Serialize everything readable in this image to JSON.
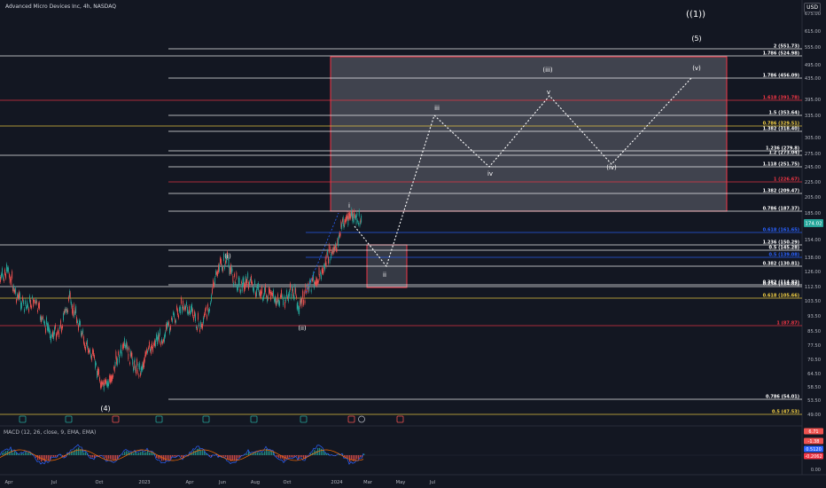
{
  "header": {
    "symbol_title": "Advanced Micro Devices Inc, 4h, NASDAQ",
    "currency_button": "USD"
  },
  "price_axis": {
    "ticks": [
      "675.00",
      "615.00",
      "555.00",
      "495.00",
      "435.00",
      "395.00",
      "335.00",
      "305.00",
      "275.00",
      "245.00",
      "225.00",
      "205.00",
      "185.00",
      "154.00",
      "138.00",
      "126.00",
      "112.50",
      "103.50",
      "93.50",
      "85.50",
      "77.50",
      "70.50",
      "64.50",
      "58.50",
      "53.50",
      "49.00"
    ],
    "current_price": "174.02"
  },
  "time_axis": [
    "Apr",
    "Jul",
    "Oct",
    "2023",
    "Apr",
    "Jun",
    "Aug",
    "Oct",
    "2024",
    "Mar",
    "May",
    "Jul"
  ],
  "fib_levels": [
    {
      "label": "2 (551.73)",
      "color": "#ffffff"
    },
    {
      "label": "1.786 (524.98)",
      "color": "#ffffff"
    },
    {
      "label": "1.786 (456.09)",
      "color": "#ffffff"
    },
    {
      "label": "1.618 (391.78)",
      "color": "#f23645"
    },
    {
      "label": "1.5 (353.64)",
      "color": "#ffffff"
    },
    {
      "label": "0.786 (329.51)",
      "color": "#f5d143"
    },
    {
      "label": "1.382 (318.40)",
      "color": "#ffffff"
    },
    {
      "label": "1.236 (279.8)",
      "color": "#ffffff"
    },
    {
      "label": "1.2 (273.04)",
      "color": "#ffffff"
    },
    {
      "label": "1.118 (251.75)",
      "color": "#ffffff"
    },
    {
      "label": "1 (226.67)",
      "color": "#f23645"
    },
    {
      "label": "1.382 (209.47)",
      "color": "#ffffff"
    },
    {
      "label": "0.786 (187.37)",
      "color": "#ffffff"
    },
    {
      "label": "0.618 (161.65)",
      "color": "#2962ff"
    },
    {
      "label": "1.236 (150.29)",
      "color": "#ffffff"
    },
    {
      "label": "0.5 (145.28)",
      "color": "#ffffff"
    },
    {
      "label": "0.5 (139.08)",
      "color": "#2962ff"
    },
    {
      "label": "0.382 (130.81)",
      "color": "#ffffff"
    },
    {
      "label": "0.382 (114.82)",
      "color": "#ffffff"
    },
    {
      "label": "0.236 (114.82)",
      "color": "#ffffff"
    },
    {
      "label": "0.618 (105.66)",
      "color": "#f5d143"
    },
    {
      "label": "1 (87.87)",
      "color": "#f23645"
    },
    {
      "label": "0.786 (54.01)",
      "color": "#ffffff"
    },
    {
      "label": "0.5 (47.53)",
      "color": "#f5d143"
    }
  ],
  "wave_labels": {
    "deg1": "((1))",
    "w5": "(5)",
    "w4": "(4)",
    "wi_paren": "(i)",
    "wii_paren": "(ii)",
    "wiii_paren": "(iii)",
    "wiv_paren": "(iv)",
    "wv_paren": "(v)",
    "i": "i",
    "ii": "ii",
    "iii": "iii",
    "iv": "iv",
    "v": "v"
  },
  "macd": {
    "title": "MACD (12, 26, close, 9, EMA, EMA)",
    "values": [
      "6.71",
      "-1.38",
      "0.5120",
      "-0.2062"
    ],
    "zero_label": "0.00"
  },
  "colors": {
    "background": "#131722",
    "up": "#26a69a",
    "down": "#ef5350",
    "box": "#f23645"
  }
}
